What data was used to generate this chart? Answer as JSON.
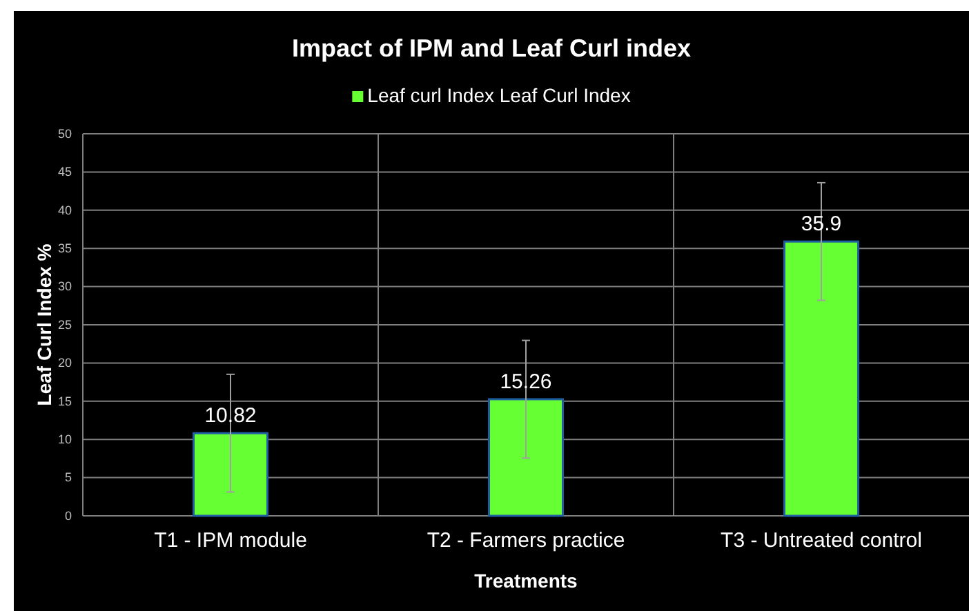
{
  "chart_data": {
    "type": "bar",
    "title": "Impact of IPM and Leaf Curl index",
    "xlabel": "Treatments",
    "ylabel": "Leaf Curl Index %",
    "categories": [
      "T1 - IPM module",
      "T2 - Farmers practice",
      "T3 - Untreated control"
    ],
    "series": [
      {
        "name": "Leaf curl Index Leaf Curl Index",
        "color": "#66ff33",
        "values": [
          10.82,
          15.26,
          35.9
        ],
        "errors": [
          7.7,
          7.7,
          7.7
        ]
      }
    ],
    "ylim": [
      0,
      50
    ],
    "yticks": [
      0,
      5,
      10,
      15,
      20,
      25,
      30,
      35,
      40,
      45,
      50
    ],
    "grid": true,
    "legend": "top",
    "data_labels": true
  }
}
